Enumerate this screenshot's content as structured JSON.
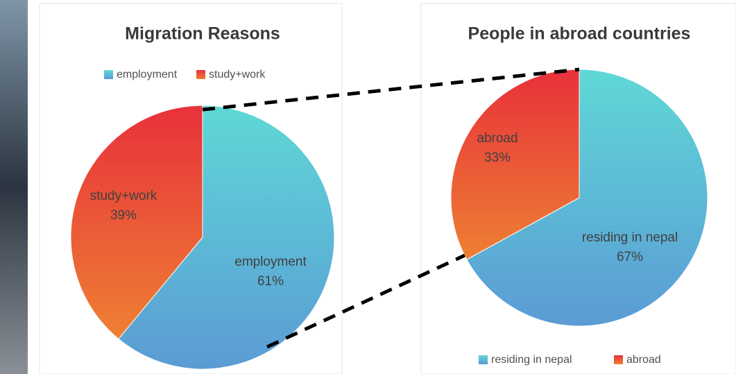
{
  "chart_data": [
    {
      "type": "pie",
      "title": "Migration Reasons",
      "categories": [
        "employment",
        "study+work"
      ],
      "values": [
        61,
        39
      ],
      "value_labels": [
        "61%",
        "39%"
      ],
      "gradients": [
        [
          "#5fd8d6",
          "#5b9bd5"
        ],
        [
          "#e8313b",
          "#ee8033"
        ]
      ],
      "legend": "top"
    },
    {
      "type": "pie",
      "title": "People in abroad countries",
      "categories": [
        "residing in nepal",
        "abroad"
      ],
      "values": [
        67,
        33
      ],
      "value_labels": [
        "67%",
        "33%"
      ],
      "gradients": [
        [
          "#5fd8d6",
          "#5b9bd5"
        ],
        [
          "#e8313b",
          "#ee8033"
        ]
      ],
      "legend": "bottom"
    }
  ]
}
